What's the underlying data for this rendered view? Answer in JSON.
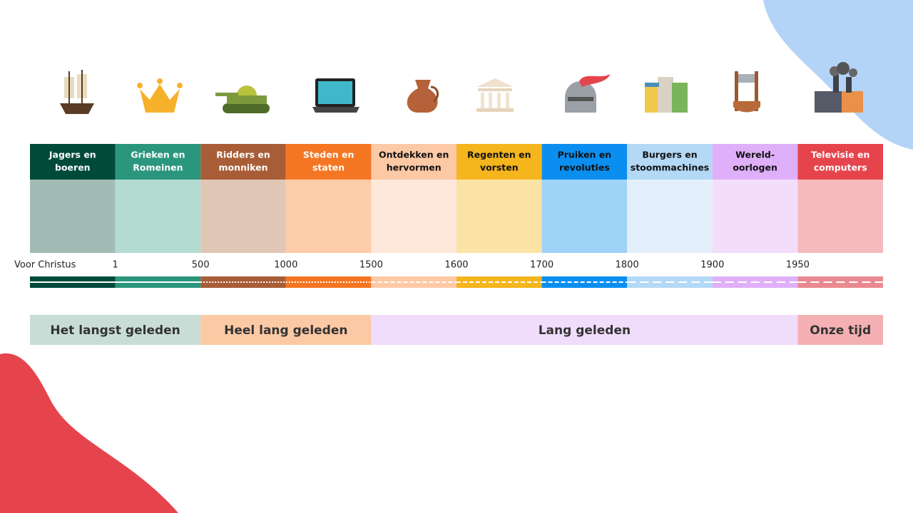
{
  "eras": [
    {
      "lines": [
        "Jagers en",
        "boeren"
      ]
    },
    {
      "lines": [
        "Grieken en",
        "Romeinen"
      ]
    },
    {
      "lines": [
        "Ridders en",
        "monniken"
      ]
    },
    {
      "lines": [
        "Steden en",
        "staten"
      ]
    },
    {
      "lines": [
        "Ontdekken en",
        "hervormen"
      ]
    },
    {
      "lines": [
        "Regenten en",
        "vorsten"
      ]
    },
    {
      "lines": [
        "Pruiken en",
        "revoluties"
      ]
    },
    {
      "lines": [
        "Burgers en",
        "stoommachines"
      ]
    },
    {
      "lines": [
        "Wereld-",
        "oorlogen"
      ]
    },
    {
      "lines": [
        "Televisie en",
        "computers"
      ]
    }
  ],
  "years": [
    "Voor Christus",
    "1",
    "500",
    "1000",
    "1500",
    "1600",
    "1700",
    "1800",
    "1900",
    "1950"
  ],
  "periods": [
    "Het langst geleden",
    "Heel lang geleden",
    "Lang geleden",
    "Onze tijd"
  ]
}
